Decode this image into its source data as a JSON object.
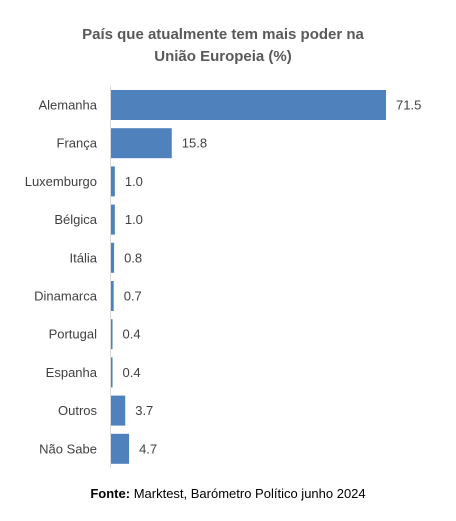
{
  "chart_data": {
    "type": "bar",
    "orientation": "horizontal",
    "title_lines": [
      "País que atualmente tem mais poder na",
      "União Europeia (%)"
    ],
    "categories": [
      "Alemanha",
      "França",
      "Luxemburgo",
      "Bélgica",
      "Itália",
      "Dinamarca",
      "Portugal",
      "Espanha",
      "Outros",
      "Não Sabe"
    ],
    "values": [
      71.5,
      15.8,
      1.0,
      1.0,
      0.8,
      0.7,
      0.4,
      0.4,
      3.7,
      4.7
    ],
    "value_labels": [
      "71.5",
      "15.8",
      "1.0",
      "1.0",
      "0.8",
      "0.7",
      "0.4",
      "0.4",
      "3.7",
      "4.7"
    ],
    "xlim": [
      0,
      71.5
    ],
    "grid": false,
    "legend": "none",
    "bar_color": "#4f81bd"
  },
  "source": {
    "prefix": "Fonte:",
    "text": " Marktest, Barómetro Político junho 2024"
  }
}
